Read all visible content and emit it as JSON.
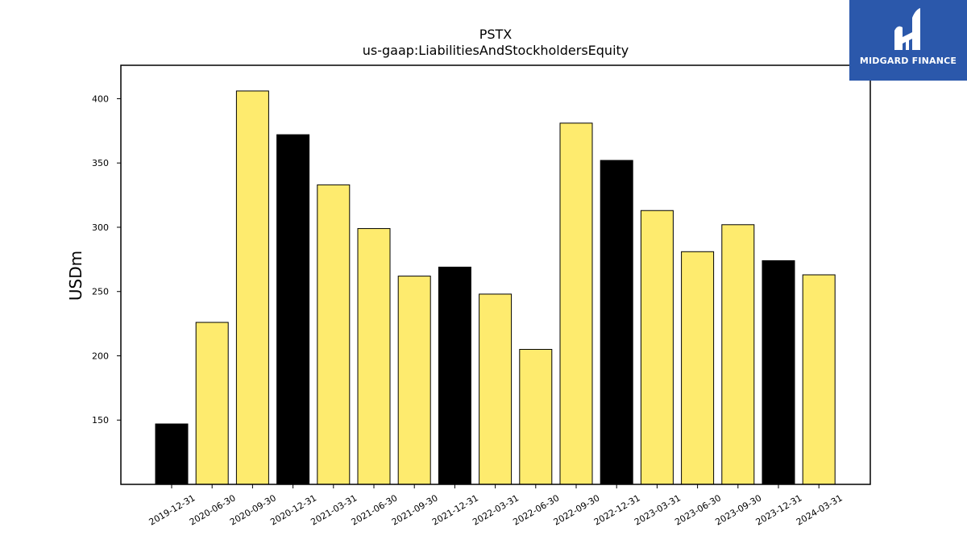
{
  "chart_data": {
    "type": "bar",
    "title": "PSTX",
    "subtitle": "us-gaap:LiabilitiesAndStockholdersEquity",
    "xlabel": "",
    "ylabel": "USDm",
    "categories": [
      "2019-12-31",
      "2020-06-30",
      "2020-09-30",
      "2020-12-31",
      "2021-03-31",
      "2021-06-30",
      "2021-09-30",
      "2021-12-31",
      "2022-03-31",
      "2022-06-30",
      "2022-09-30",
      "2022-12-31",
      "2023-03-31",
      "2023-06-30",
      "2023-09-30",
      "2023-12-31",
      "2024-03-31"
    ],
    "values": [
      147,
      226,
      406,
      372,
      333,
      299,
      262,
      269,
      248,
      205,
      381,
      352,
      313,
      281,
      302,
      274,
      263
    ],
    "bar_colors": [
      "#000000",
      "#feeb6e",
      "#feeb6e",
      "#000000",
      "#feeb6e",
      "#feeb6e",
      "#feeb6e",
      "#000000",
      "#feeb6e",
      "#feeb6e",
      "#feeb6e",
      "#000000",
      "#feeb6e",
      "#feeb6e",
      "#feeb6e",
      "#000000",
      "#feeb6e"
    ],
    "yticks": [
      150,
      200,
      250,
      300,
      350,
      400
    ],
    "ylim": [
      100,
      426
    ],
    "grid": false,
    "legend": "none"
  },
  "logo": {
    "text": "MIDGARD FINANCE",
    "color": "#2b58ab"
  }
}
